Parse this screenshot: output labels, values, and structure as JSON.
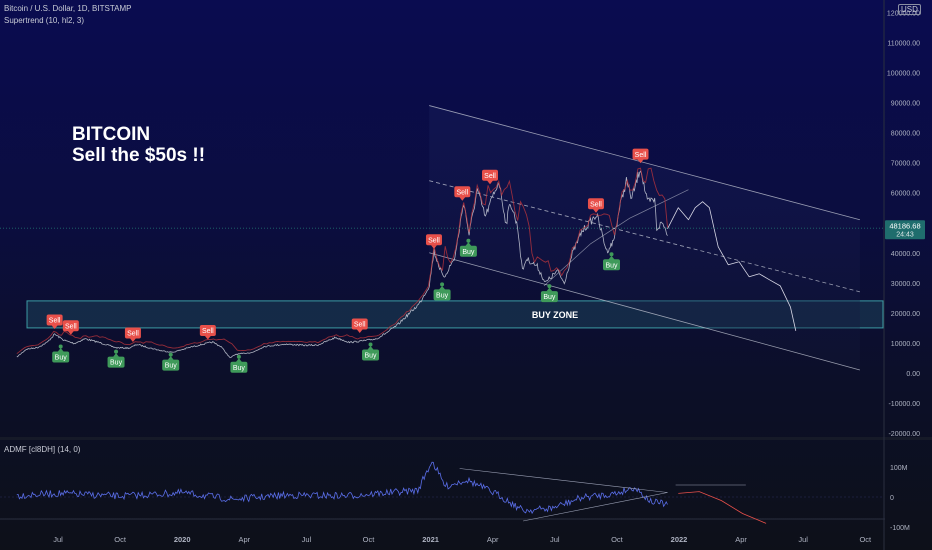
{
  "legend": {
    "symbol_line": "Bitcoin / U.S. Dollar, 1D, BITSTAMP",
    "indicator_line": "Supertrend (10, hl2, 3)",
    "admf_line": "ADMF [cl8DH] (14, 0)"
  },
  "currency_badge": "USD",
  "headline": {
    "line1": "BITCOIN",
    "line2": "Sell the $50s !!"
  },
  "zone_label": "BUY ZONE",
  "last_price": {
    "value": "48186.68",
    "countdown": "24:43"
  },
  "colors": {
    "price": "#c2c7d3",
    "admf": "#5a6ee8",
    "sell": "#e8504a",
    "buy": "#3f9a5a",
    "zone": "#4fd2d0",
    "supertrend": "#b8333c",
    "last_price": "#1f6d6d"
  },
  "chart_data": [
    {
      "type": "line",
      "title": "Bitcoin / U.S. Dollar, 1D, BITSTAMP",
      "xlabel": "",
      "ylabel": "",
      "x_ticks": [
        "Jul",
        "Oct",
        "2020",
        "Apr",
        "Jul",
        "Oct",
        "2021",
        "Apr",
        "Jul",
        "Oct",
        "2022",
        "Apr",
        "Jul",
        "Oct"
      ],
      "y_ticks": [
        "-20000.00",
        "-10000.00",
        "0.00",
        "10000.00",
        "20000.00",
        "30000.00",
        "40000.00",
        "50000.00",
        "60000.00",
        "70000.00",
        "80000.00",
        "90000.00",
        "100000.00",
        "110000.00",
        "120000.00"
      ],
      "ylim": [
        -20000,
        120000
      ],
      "grid": false,
      "log_scale": false,
      "series": [
        {
          "name": "",
          "x": [
            "2019-05-01",
            "2019-05-15",
            "2019-06-01",
            "2019-06-15",
            "2019-06-26",
            "2019-07-10",
            "2019-07-25",
            "2019-08-10",
            "2019-09-01",
            "2019-09-25",
            "2019-10-15",
            "2019-10-26",
            "2019-11-15",
            "2019-12-01",
            "2019-12-18",
            "2020-01-15",
            "2020-02-15",
            "2020-02-28",
            "2020-03-12",
            "2020-03-20",
            "2020-04-15",
            "2020-05-01",
            "2020-06-01",
            "2020-07-01",
            "2020-07-20",
            "2020-08-15",
            "2020-09-05",
            "2020-09-25",
            "2020-10-15",
            "2020-11-01",
            "2020-11-15",
            "2020-12-01",
            "2020-12-17",
            "2021-01-01",
            "2021-01-08",
            "2021-01-22",
            "2021-02-08",
            "2021-02-21",
            "2021-03-01",
            "2021-03-13",
            "2021-03-25",
            "2021-04-14",
            "2021-04-25",
            "2021-05-01",
            "2021-05-12",
            "2021-05-19",
            "2021-05-25",
            "2021-06-10",
            "2021-06-22",
            "2021-07-10",
            "2021-07-20",
            "2021-08-01",
            "2021-08-15",
            "2021-09-06",
            "2021-09-21",
            "2021-10-01",
            "2021-10-10",
            "2021-10-20",
            "2021-10-28",
            "2021-11-10",
            "2021-11-20",
            "2021-12-01",
            "2021-12-04",
            "2021-12-12",
            "2021-12-20"
          ],
          "values": [
            5300,
            7900,
            8500,
            10200,
            12900,
            10900,
            9800,
            11400,
            10100,
            8400,
            8300,
            9500,
            8300,
            7400,
            6900,
            8700,
            10300,
            8700,
            5000,
            6200,
            6900,
            8800,
            9600,
            9200,
            9300,
            11800,
            10200,
            10700,
            11400,
            13700,
            16000,
            19500,
            23000,
            29000,
            40500,
            31500,
            38500,
            57000,
            46000,
            61000,
            52000,
            64000,
            49500,
            57000,
            48500,
            34000,
            38000,
            35500,
            30000,
            34000,
            29900,
            39800,
            47000,
            52700,
            40500,
            43800,
            55000,
            64000,
            58000,
            68500,
            56800,
            57500,
            48000,
            50000,
            46500
          ]
        },
        {
          "name": "",
          "x": [
            "2021-12-20",
            "2022-01-05",
            "2022-01-20",
            "2022-01-30",
            "2022-02-10",
            "2022-02-20",
            "2022-03-05",
            "2022-03-20",
            "2022-04-05",
            "2022-04-20",
            "2022-05-05",
            "2022-05-20",
            "2022-06-05",
            "2022-06-20",
            "2022-06-28"
          ],
          "values": [
            48000,
            55000,
            51000,
            55000,
            57000,
            55000,
            42000,
            36000,
            37000,
            32000,
            33000,
            31000,
            29000,
            22000,
            14000
          ]
        }
      ],
      "annotations": [
        {
          "label": "Sell",
          "x": "2019-06-26",
          "y": 13800
        },
        {
          "label": "Sell",
          "x": "2019-07-20",
          "y": 11900
        },
        {
          "label": "Sell",
          "x": "2019-10-20",
          "y": 9500
        },
        {
          "label": "Sell",
          "x": "2020-02-08",
          "y": 10300
        },
        {
          "label": "Sell",
          "x": "2020-09-20",
          "y": 12500
        },
        {
          "label": "Sell",
          "x": "2021-01-08",
          "y": 40500
        },
        {
          "label": "Sell",
          "x": "2021-02-19",
          "y": 56500
        },
        {
          "label": "Sell",
          "x": "2021-04-01",
          "y": 62000
        },
        {
          "label": "Sell",
          "x": "2021-09-05",
          "y": 52500
        },
        {
          "label": "Sell",
          "x": "2021-11-10",
          "y": 69000
        },
        {
          "label": "Buy",
          "x": "2019-07-05",
          "y": 9800
        },
        {
          "label": "Buy",
          "x": "2019-09-25",
          "y": 8100
        },
        {
          "label": "Buy",
          "x": "2019-12-15",
          "y": 7100
        },
        {
          "label": "Buy",
          "x": "2020-03-25",
          "y": 6400
        },
        {
          "label": "Buy",
          "x": "2020-10-06",
          "y": 10500
        },
        {
          "label": "Buy",
          "x": "2021-01-20",
          "y": 30500
        },
        {
          "label": "Buy",
          "x": "2021-02-28",
          "y": 45000
        },
        {
          "label": "Buy",
          "x": "2021-06-28",
          "y": 29900
        },
        {
          "label": "Buy",
          "x": "2021-09-28",
          "y": 40500
        }
      ],
      "channel": {
        "upper": {
          "x": [
            "2021-01-01",
            "2022-10-01"
          ],
          "y": [
            89000,
            51000
          ]
        },
        "middle": {
          "x": [
            "2021-01-01",
            "2022-10-01"
          ],
          "y": [
            64000,
            27000
          ]
        },
        "lower": {
          "x": [
            "2021-01-01",
            "2022-10-01"
          ],
          "y": [
            40000,
            1000
          ]
        }
      },
      "zone": {
        "label": "BUY ZONE",
        "y_range": [
          15000,
          24000
        ]
      }
    },
    {
      "type": "line",
      "title": "ADMF [cl8DH] (14, 0)",
      "y_ticks": [
        "-100M",
        "0",
        "100M"
      ],
      "ylim": [
        -120,
        130
      ],
      "series": [
        {
          "name": "",
          "x": [
            "2019-05-01",
            "2019-07-01",
            "2019-10-01",
            "2020-01-01",
            "2020-03-15",
            "2020-06-01",
            "2020-09-01",
            "2020-12-15",
            "2021-01-05",
            "2021-01-25",
            "2021-02-25",
            "2021-04-15",
            "2021-05-20",
            "2021-07-01",
            "2021-08-15",
            "2021-10-05",
            "2021-11-01",
            "2021-11-25",
            "2021-12-20"
          ],
          "values": [
            5,
            12,
            3,
            14,
            -8,
            6,
            4,
            22,
            120,
            35,
            58,
            5,
            -45,
            -38,
            -2,
            12,
            33,
            -15,
            -25
          ]
        },
        {
          "name": "",
          "x": [
            "2022-01-05",
            "2022-02-05",
            "2022-03-10",
            "2022-04-10",
            "2022-05-15"
          ],
          "values": [
            12,
            18,
            -12,
            -55,
            -88
          ]
        }
      ]
    }
  ]
}
